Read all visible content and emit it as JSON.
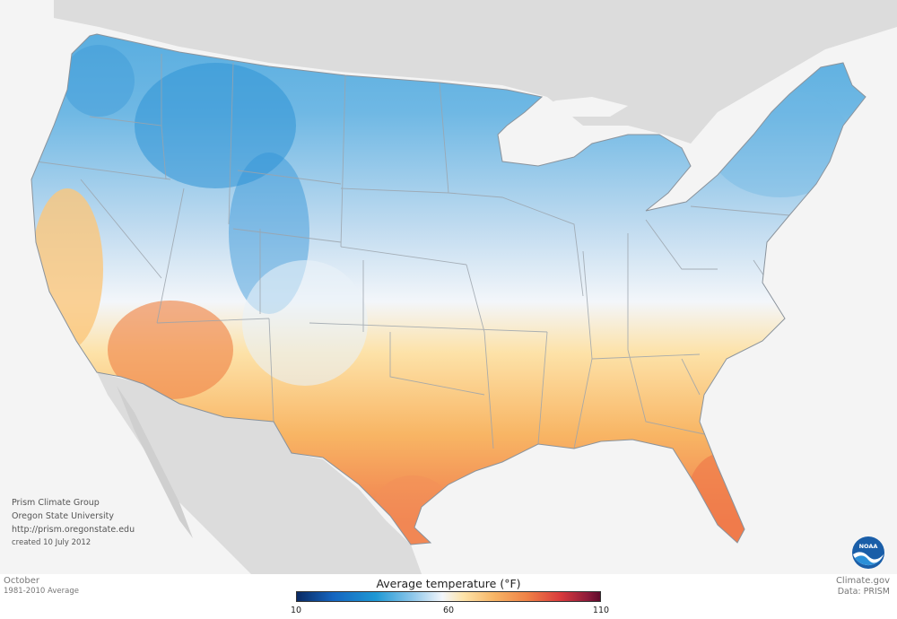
{
  "credits": {
    "line1": "Prism Climate Group",
    "line2": "Oregon State University",
    "line3": "http://prism.oregonstate.edu",
    "line4": "created 10 July 2012"
  },
  "footer": {
    "month": "October",
    "period": "1981-2010 Average",
    "site": "Climate.gov",
    "data_source": "Data: PRISM"
  },
  "legend": {
    "title": "Average temperature (°F)",
    "ticks": [
      "10",
      "60",
      "110"
    ],
    "tick_values": [
      10,
      60,
      110
    ],
    "min": 10,
    "max": 110,
    "colors": [
      "#0a2a63",
      "#1e98d4",
      "#f2f6fb",
      "#f7b566",
      "#d93a3c",
      "#5e0b2b"
    ]
  },
  "logo": {
    "name": "noaa-logo",
    "text": "NOAA"
  },
  "map": {
    "region": "contiguous-united-states",
    "background_color": "#f4f4f4",
    "land_gray": "#dcdcdc",
    "cold_color": "#3f9fda",
    "warm_color": "#f29a55"
  }
}
